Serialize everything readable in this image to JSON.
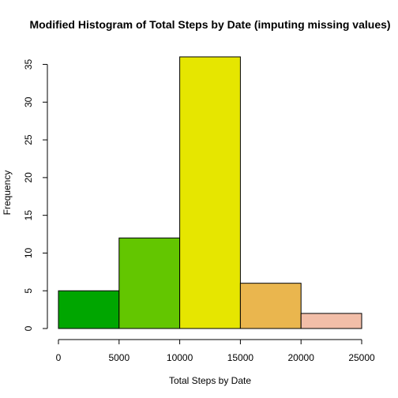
{
  "chart_data": {
    "type": "bar",
    "title": "Modified Histogram of Total Steps by Date (imputing missing values)",
    "xlabel": "Total Steps by Date",
    "ylabel": "Frequency",
    "bins": [
      {
        "x0": 0,
        "x1": 5000,
        "value": 5,
        "color": "#00A600"
      },
      {
        "x0": 5000,
        "x1": 10000,
        "value": 12,
        "color": "#63C600"
      },
      {
        "x0": 10000,
        "x1": 15000,
        "value": 36,
        "color": "#E6E600"
      },
      {
        "x0": 15000,
        "x1": 20000,
        "value": 6,
        "color": "#EAB64E"
      },
      {
        "x0": 20000,
        "x1": 25000,
        "value": 2,
        "color": "#F2BEA8"
      }
    ],
    "xlim": [
      0,
      25000
    ],
    "ylim": [
      0,
      36
    ],
    "xticks": [
      0,
      5000,
      10000,
      15000,
      20000,
      25000
    ],
    "yticks": [
      0,
      5,
      10,
      15,
      20,
      25,
      30,
      35
    ],
    "grid": false,
    "legend": "none"
  }
}
